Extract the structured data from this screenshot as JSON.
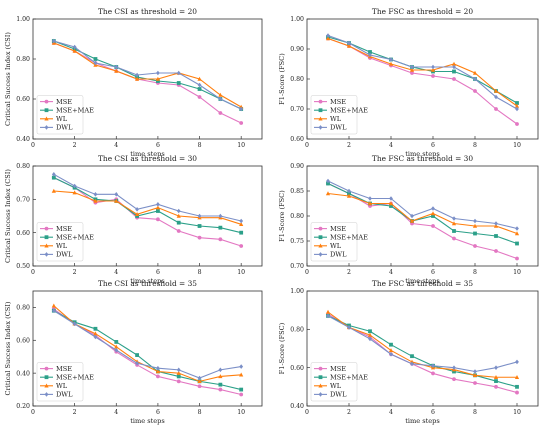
{
  "chart_data": [
    {
      "type": "line",
      "title": "The CSI as threshold = 20",
      "xlabel": "time steps",
      "ylabel": "Critical Success Index (CSI)",
      "xlim": [
        0,
        11
      ],
      "ylim": [
        0.4,
        1.0
      ],
      "xticks": [
        0,
        2,
        4,
        6,
        8,
        10
      ],
      "yticks": [
        0.4,
        0.6,
        0.8,
        1.0
      ],
      "x": [
        1,
        2,
        3,
        4,
        5,
        6,
        7,
        8,
        9,
        10
      ],
      "series": [
        {
          "name": "MSE",
          "color": "#e377c2",
          "values": [
            0.88,
            0.84,
            0.78,
            0.74,
            0.7,
            0.68,
            0.67,
            0.61,
            0.53,
            0.48
          ]
        },
        {
          "name": "MSE+MAE",
          "color": "#2ca089",
          "values": [
            0.89,
            0.85,
            0.8,
            0.76,
            0.71,
            0.69,
            0.68,
            0.65,
            0.6,
            0.55
          ]
        },
        {
          "name": "WL",
          "color": "#ff7f0e",
          "values": [
            0.88,
            0.84,
            0.77,
            0.74,
            0.7,
            0.7,
            0.73,
            0.7,
            0.62,
            0.56
          ]
        },
        {
          "name": "DWL",
          "color": "#7b8fc7",
          "values": [
            0.89,
            0.86,
            0.78,
            0.76,
            0.72,
            0.73,
            0.73,
            0.67,
            0.6,
            0.55
          ]
        }
      ]
    },
    {
      "type": "line",
      "title": "The FSC as threshold = 20",
      "xlabel": "time steps",
      "ylabel": "F1-Score (FSC)",
      "xlim": [
        0,
        11
      ],
      "ylim": [
        0.6,
        1.0
      ],
      "xticks": [
        0,
        2,
        4,
        6,
        8,
        10
      ],
      "yticks": [
        0.6,
        0.7,
        0.8,
        0.9,
        1.0
      ],
      "x": [
        1,
        2,
        3,
        4,
        5,
        6,
        7,
        8,
        9,
        10
      ],
      "series": [
        {
          "name": "MSE",
          "color": "#e377c2",
          "values": [
            0.935,
            0.91,
            0.87,
            0.845,
            0.82,
            0.81,
            0.8,
            0.76,
            0.7,
            0.65
          ]
        },
        {
          "name": "MSE+MAE",
          "color": "#2ca089",
          "values": [
            0.94,
            0.92,
            0.89,
            0.865,
            0.84,
            0.825,
            0.825,
            0.8,
            0.76,
            0.72
          ]
        },
        {
          "name": "WL",
          "color": "#ff7f0e",
          "values": [
            0.935,
            0.91,
            0.875,
            0.85,
            0.83,
            0.83,
            0.85,
            0.82,
            0.76,
            0.71
          ]
        },
        {
          "name": "DWL",
          "color": "#7b8fc7",
          "values": [
            0.945,
            0.92,
            0.88,
            0.865,
            0.84,
            0.84,
            0.84,
            0.8,
            0.74,
            0.7
          ]
        }
      ]
    },
    {
      "type": "line",
      "title": "The CSI as threshold = 30",
      "xlabel": "time steps",
      "ylabel": "Critical Success Index (CSI)",
      "xlim": [
        0,
        11
      ],
      "ylim": [
        0.5,
        0.8
      ],
      "xticks": [
        0,
        2,
        4,
        6,
        8,
        10
      ],
      "yticks": [
        0.5,
        0.6,
        0.7,
        0.8
      ],
      "x": [
        1,
        2,
        3,
        4,
        5,
        6,
        7,
        8,
        9,
        10
      ],
      "series": [
        {
          "name": "MSE",
          "color": "#e377c2",
          "values": [
            0.765,
            0.735,
            0.69,
            0.7,
            0.645,
            0.64,
            0.605,
            0.585,
            0.58,
            0.56
          ]
        },
        {
          "name": "MSE+MAE",
          "color": "#2ca089",
          "values": [
            0.765,
            0.735,
            0.7,
            0.695,
            0.65,
            0.665,
            0.63,
            0.62,
            0.615,
            0.6
          ]
        },
        {
          "name": "WL",
          "color": "#ff7f0e",
          "values": [
            0.725,
            0.72,
            0.695,
            0.695,
            0.655,
            0.675,
            0.65,
            0.645,
            0.645,
            0.625
          ]
        },
        {
          "name": "DWL",
          "color": "#7b8fc7",
          "values": [
            0.775,
            0.74,
            0.715,
            0.715,
            0.67,
            0.685,
            0.665,
            0.65,
            0.65,
            0.635
          ]
        }
      ]
    },
    {
      "type": "line",
      "title": "The FSC as threshold = 30",
      "xlabel": "time steps",
      "ylabel": "F1-Score (FSC)",
      "xlim": [
        0,
        11
      ],
      "ylim": [
        0.7,
        0.9
      ],
      "xticks": [
        0,
        2,
        4,
        6,
        8,
        10
      ],
      "yticks": [
        0.7,
        0.75,
        0.8,
        0.85,
        0.9
      ],
      "x": [
        1,
        2,
        3,
        4,
        5,
        6,
        7,
        8,
        9,
        10
      ],
      "series": [
        {
          "name": "MSE",
          "color": "#e377c2",
          "values": [
            0.865,
            0.845,
            0.82,
            0.825,
            0.785,
            0.78,
            0.755,
            0.74,
            0.73,
            0.715
          ]
        },
        {
          "name": "MSE+MAE",
          "color": "#2ca089",
          "values": [
            0.865,
            0.845,
            0.825,
            0.82,
            0.79,
            0.8,
            0.77,
            0.765,
            0.76,
            0.745
          ]
        },
        {
          "name": "WL",
          "color": "#ff7f0e",
          "values": [
            0.845,
            0.84,
            0.825,
            0.825,
            0.79,
            0.805,
            0.785,
            0.78,
            0.78,
            0.765
          ]
        },
        {
          "name": "DWL",
          "color": "#7b8fc7",
          "values": [
            0.87,
            0.85,
            0.835,
            0.835,
            0.8,
            0.815,
            0.795,
            0.79,
            0.785,
            0.775
          ]
        }
      ]
    },
    {
      "type": "line",
      "title": "The CSI as threshold = 35",
      "xlabel": "time steps",
      "ylabel": "Critical Success Index (CSI)",
      "xlim": [
        0,
        11
      ],
      "ylim": [
        0.2,
        0.9
      ],
      "xticks": [
        0,
        2,
        4,
        6,
        8,
        10
      ],
      "yticks": [
        0.2,
        0.4,
        0.6,
        0.8
      ],
      "x": [
        1,
        2,
        3,
        4,
        5,
        6,
        7,
        8,
        9,
        10
      ],
      "series": [
        {
          "name": "MSE",
          "color": "#e377c2",
          "values": [
            0.79,
            0.7,
            0.63,
            0.53,
            0.45,
            0.38,
            0.35,
            0.32,
            0.3,
            0.27
          ]
        },
        {
          "name": "MSE+MAE",
          "color": "#2ca089",
          "values": [
            0.78,
            0.71,
            0.67,
            0.59,
            0.51,
            0.41,
            0.38,
            0.35,
            0.33,
            0.3
          ]
        },
        {
          "name": "WL",
          "color": "#ff7f0e",
          "values": [
            0.81,
            0.7,
            0.64,
            0.56,
            0.47,
            0.41,
            0.4,
            0.35,
            0.38,
            0.39
          ]
        },
        {
          "name": "DWL",
          "color": "#7b8fc7",
          "values": [
            0.78,
            0.7,
            0.62,
            0.54,
            0.46,
            0.43,
            0.42,
            0.37,
            0.42,
            0.44
          ]
        }
      ]
    },
    {
      "type": "line",
      "title": "The FSC as threshold = 35",
      "xlabel": "time steps",
      "ylabel": "F1-Score (FSC)",
      "xlim": [
        0,
        11
      ],
      "ylim": [
        0.4,
        1.0
      ],
      "xticks": [
        0,
        2,
        4,
        6,
        8,
        10
      ],
      "yticks": [
        0.4,
        0.6,
        0.8,
        1.0
      ],
      "x": [
        1,
        2,
        3,
        4,
        5,
        6,
        7,
        8,
        9,
        10
      ],
      "series": [
        {
          "name": "MSE",
          "color": "#e377c2",
          "values": [
            0.88,
            0.81,
            0.76,
            0.67,
            0.62,
            0.57,
            0.54,
            0.52,
            0.5,
            0.47
          ]
        },
        {
          "name": "MSE+MAE",
          "color": "#2ca089",
          "values": [
            0.87,
            0.82,
            0.79,
            0.72,
            0.66,
            0.61,
            0.58,
            0.56,
            0.53,
            0.5
          ]
        },
        {
          "name": "WL",
          "color": "#ff7f0e",
          "values": [
            0.89,
            0.81,
            0.77,
            0.69,
            0.63,
            0.6,
            0.59,
            0.56,
            0.55,
            0.55
          ]
        },
        {
          "name": "DWL",
          "color": "#7b8fc7",
          "values": [
            0.87,
            0.81,
            0.75,
            0.67,
            0.62,
            0.61,
            0.6,
            0.58,
            0.6,
            0.63
          ]
        }
      ]
    }
  ]
}
